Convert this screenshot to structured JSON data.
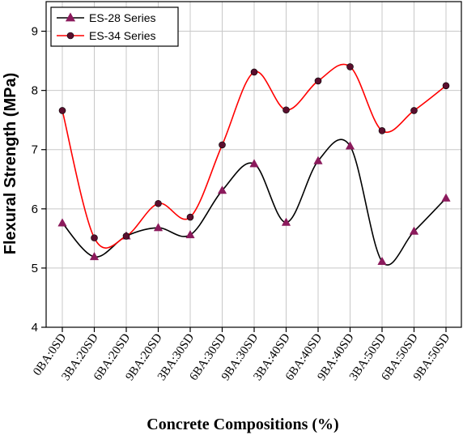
{
  "chart_data": {
    "type": "line",
    "title": "",
    "xlabel": "Concrete Compositions (%)",
    "ylabel": "Flexural Strength (MPa)",
    "categories": [
      "0BA:0SD",
      "3BA:20SD",
      "6BA:20SD",
      "9BA:20SD",
      "3BA:30SD",
      "6BA:30SD",
      "9BA:30SD",
      "3BA:40SD",
      "6BA:40SD",
      "9BA:40SD",
      "3BA:50SD",
      "6BA:50SD",
      "9BA:50SD"
    ],
    "ylim": [
      4,
      9.5
    ],
    "yticks": [
      "4",
      "5",
      "6",
      "7",
      "8",
      "9"
    ],
    "grid": true,
    "legend_position": "top-left",
    "series": [
      {
        "name": "ES-28 Series",
        "marker": "triangle",
        "color": "#000000",
        "marker_color": "#8b1a5c",
        "values": [
          5.76,
          5.19,
          5.54,
          5.68,
          5.56,
          6.31,
          6.76,
          5.77,
          6.81,
          7.06,
          5.11,
          5.62,
          6.18
        ]
      },
      {
        "name": "ES-34 Series",
        "marker": "circle",
        "color": "#ff0000",
        "marker_color": "#5a0f2e",
        "values": [
          7.66,
          5.51,
          5.54,
          6.09,
          5.86,
          7.08,
          8.31,
          7.67,
          8.16,
          8.4,
          7.32,
          7.66,
          8.08
        ]
      }
    ]
  }
}
